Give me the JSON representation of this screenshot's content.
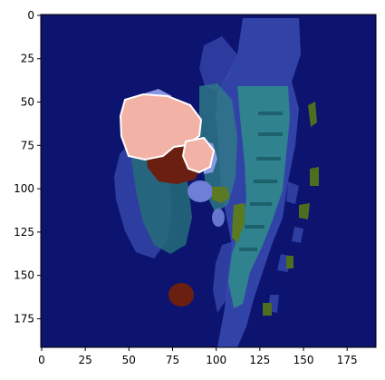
{
  "plot": {
    "x_ticks": [
      "0",
      "25",
      "50",
      "75",
      "100",
      "125",
      "150",
      "175"
    ],
    "y_ticks": [
      "0",
      "25",
      "50",
      "75",
      "100",
      "125",
      "150",
      "175"
    ],
    "x_tick_values": [
      0,
      25,
      50,
      75,
      100,
      125,
      150,
      175
    ],
    "y_tick_values": [
      0,
      25,
      50,
      75,
      100,
      125,
      150,
      175
    ],
    "x_range": [
      -0.5,
      191.5
    ],
    "y_range": [
      -0.5,
      191.5
    ],
    "y_inverted": true,
    "grid": false
  },
  "image": {
    "content": "medical-scan-segmentation-overlay",
    "colors": {
      "background": "#0c1470",
      "soft-tissue": "#3a4bb0",
      "spine": "#2f8a8c",
      "organ-teal": "#246c78",
      "mass-pink": "#f2b3a6",
      "mass-highlight": "#ffffff",
      "dark-red": "#6b1f10",
      "green": "#5c7a22",
      "lavender": "#6f7ed6"
    }
  }
}
